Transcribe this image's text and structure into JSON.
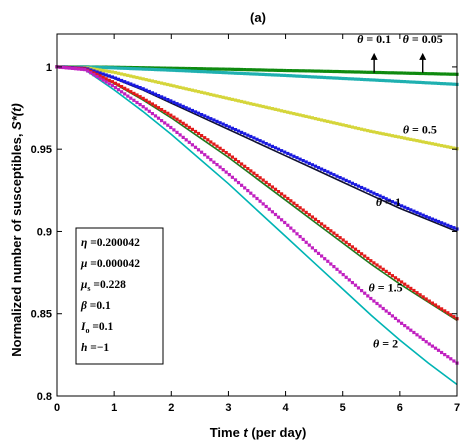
{
  "chart_data": {
    "type": "line",
    "panel_label": "(a)",
    "xlabel_prefix": "Time ",
    "xlabel_var": "t",
    "xlabel_suffix": " (per day)",
    "ylabel_prefix": "Normalized number of susceptibles, ",
    "ylabel_var": "S*(t)",
    "xlim": [
      0,
      7
    ],
    "ylim": [
      0.8,
      1.02
    ],
    "x_ticks": [
      0,
      1,
      2,
      3,
      4,
      5,
      6,
      7
    ],
    "x_tick_labels": [
      "0",
      "1",
      "2",
      "3",
      "4",
      "5",
      "6",
      "7"
    ],
    "y_ticks": [
      0.8,
      0.85,
      0.9,
      0.95,
      1.0
    ],
    "y_tick_labels": [
      "0.8",
      "0.85",
      "0.9",
      "0.95",
      "1"
    ],
    "x": [
      0,
      0.5,
      1,
      1.5,
      2,
      2.5,
      3,
      3.5,
      4,
      4.5,
      5,
      5.5,
      6,
      6.5,
      7
    ],
    "series": [
      {
        "theta": "0.05",
        "line_color": "#1f7a1f",
        "marker_color": "#0e8a0e",
        "line": [
          1,
          1,
          0.9997,
          0.9994,
          0.9991,
          0.9988,
          0.9984,
          0.998,
          0.9976,
          0.9972,
          0.9968,
          0.9964,
          0.996,
          0.9956,
          0.9952
        ],
        "markers": [
          1,
          1,
          0.9998,
          0.9995,
          0.9992,
          0.9989,
          0.9986,
          0.9982,
          0.9978,
          0.9975,
          0.9971,
          0.9967,
          0.9963,
          0.9959,
          0.9955
        ]
      },
      {
        "theta": "0.1",
        "line_color": "#00b4b4",
        "marker_color": "#1fb0b0",
        "line": [
          1,
          1,
          0.9993,
          0.9986,
          0.9978,
          0.997,
          0.9962,
          0.9954,
          0.9946,
          0.9937,
          0.9928,
          0.9919,
          0.991,
          0.9901,
          0.9892
        ],
        "markers": [
          1,
          1,
          0.9994,
          0.9987,
          0.998,
          0.9972,
          0.9964,
          0.9956,
          0.9948,
          0.9939,
          0.993,
          0.9921,
          0.9912,
          0.9903,
          0.9894
        ]
      },
      {
        "theta": "0.5",
        "line_color": "#8c8c00",
        "marker_color": "#d6d63a",
        "line": [
          1,
          0.9995,
          0.9965,
          0.9925,
          0.9885,
          0.9845,
          0.9805,
          0.9765,
          0.9725,
          0.9685,
          0.9645,
          0.9605,
          0.957,
          0.9535,
          0.95
        ],
        "markers": [
          1,
          0.9996,
          0.9967,
          0.9928,
          0.9888,
          0.9848,
          0.9808,
          0.9768,
          0.9728,
          0.9688,
          0.9648,
          0.9608,
          0.9573,
          0.9538,
          0.9503
        ]
      },
      {
        "theta": "1",
        "line_color": "#101030",
        "marker_color": "#1a1ae0",
        "line": [
          1,
          0.999,
          0.993,
          0.986,
          0.978,
          0.97,
          0.962,
          0.954,
          0.946,
          0.938,
          0.93,
          0.922,
          0.914,
          0.907,
          0.9
        ],
        "markers": [
          1,
          0.9992,
          0.9935,
          0.9868,
          0.9792,
          0.9715,
          0.9638,
          0.956,
          0.948,
          0.94,
          0.932,
          0.924,
          0.916,
          0.9085,
          0.9015
        ]
      },
      {
        "theta": "1.5",
        "line_color": "#1f7a1f",
        "marker_color": "#e21a1a",
        "line": [
          1,
          0.9985,
          0.99,
          0.98,
          0.969,
          0.957,
          0.945,
          0.932,
          0.919,
          0.906,
          0.893,
          0.88,
          0.868,
          0.857,
          0.846
        ],
        "markers": [
          1,
          0.9987,
          0.9905,
          0.981,
          0.9705,
          0.959,
          0.947,
          0.934,
          0.921,
          0.908,
          0.895,
          0.882,
          0.87,
          0.858,
          0.847
        ]
      },
      {
        "theta": "2",
        "line_color": "#00b4b4",
        "marker_color": "#c020c0",
        "line": [
          1,
          0.998,
          0.986,
          0.973,
          0.959,
          0.944,
          0.929,
          0.913,
          0.897,
          0.881,
          0.865,
          0.849,
          0.834,
          0.82,
          0.807
        ],
        "markers": [
          1,
          0.9983,
          0.988,
          0.976,
          0.963,
          0.949,
          0.935,
          0.92,
          0.905,
          0.889,
          0.874,
          0.859,
          0.845,
          0.832,
          0.82
        ]
      }
    ],
    "annotations": [
      {
        "theta": "0.1",
        "x": 5.55,
        "y": 1.0145
      },
      {
        "theta": "0.05",
        "x": 6.4,
        "y": 1.0145
      },
      {
        "theta": "0.5",
        "x": 6.35,
        "y": 0.9595
      },
      {
        "theta": "1",
        "x": 5.8,
        "y": 0.9155
      },
      {
        "theta": "1.5",
        "x": 5.75,
        "y": 0.8635
      },
      {
        "theta": "2",
        "x": 5.75,
        "y": 0.8295
      }
    ],
    "arrows": [
      {
        "x": 5.55,
        "y_from": 0.9965,
        "y_to": 1.0055
      },
      {
        "x": 6.4,
        "y_from": 0.9965,
        "y_to": 1.0055
      }
    ],
    "theta_symbol": "θ",
    "eq_symbol": "=",
    "parameters": [
      {
        "symbol": "η",
        "sub": "",
        "value": "0.200042"
      },
      {
        "symbol": "μ",
        "sub": "",
        "value": "0.000042"
      },
      {
        "symbol": "μ",
        "sub": "s",
        "value": "0.228"
      },
      {
        "symbol": "β",
        "sub": "",
        "value": "0.1"
      },
      {
        "symbol": "I",
        "sub": "o",
        "value": "0.1"
      },
      {
        "symbol": "h",
        "sub": "",
        "value": "−1"
      }
    ]
  }
}
